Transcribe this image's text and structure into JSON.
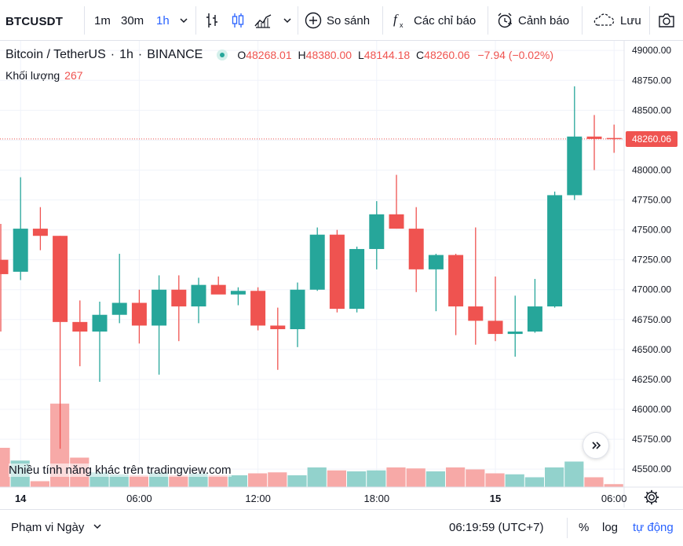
{
  "toolbar": {
    "symbol": "BTCUSDT",
    "intervals": [
      "1m",
      "30m",
      "1h"
    ],
    "active_interval": "1h",
    "compare_label": "So sánh",
    "indicators_label": "Các chỉ báo",
    "alert_label": "Cảnh báo",
    "save_label": "Lưu",
    "icons": [
      "chevron-down-icon",
      "bar-chart-icon",
      "candle-chart-icon",
      "area-chart-icon",
      "plus-circle-icon",
      "fx-icon",
      "alarm-icon",
      "cloud-icon",
      "camera-icon"
    ]
  },
  "legend": {
    "title": "Bitcoin / TetherUS",
    "interval": "1h",
    "exchange": "BINANCE",
    "ohlc": {
      "o": "48268.01",
      "h": "48380.00",
      "l": "48144.18",
      "c": "48260.06",
      "change": "−7.94 (−0.02%)"
    },
    "volume_label": "Khối lượng",
    "volume_value": "267"
  },
  "watermark": "Nhiều tính năng khác trên tradingview.com",
  "bottom": {
    "range_label": "Phạm vi Ngày",
    "time": "06:19:59 (UTC+7)",
    "percent": "%",
    "log": "log",
    "auto": "tự động"
  },
  "colors": {
    "up": "#26a69a",
    "down": "#ef5350",
    "up_volume": "#92d2cc",
    "down_volume": "#f7a9a7",
    "accent": "#2962ff"
  },
  "chart_data": {
    "type": "candlestick",
    "ylim": [
      45350,
      49080
    ],
    "price_ticks": [
      49000,
      48750,
      48500,
      48250,
      48000,
      47750,
      47500,
      47250,
      47000,
      46750,
      46500,
      46250,
      46000,
      45750,
      45500
    ],
    "last_price": "48260.06",
    "time_ticks": [
      {
        "label": "14",
        "bold": true,
        "index": 1
      },
      {
        "label": "06:00",
        "bold": false,
        "index": 7
      },
      {
        "label": "12:00",
        "bold": false,
        "index": 13
      },
      {
        "label": "18:00",
        "bold": false,
        "index": 19
      },
      {
        "label": "15",
        "bold": true,
        "index": 25
      },
      {
        "label": "06:00",
        "bold": false,
        "index": 31
      }
    ],
    "candles": [
      {
        "o": 47250,
        "h": 47550,
        "l": 46650,
        "c": 47130
      },
      {
        "o": 47150,
        "h": 47940,
        "l": 47080,
        "c": 47510
      },
      {
        "o": 47510,
        "h": 47690,
        "l": 47330,
        "c": 47450
      },
      {
        "o": 47450,
        "h": 47450,
        "l": 45670,
        "c": 46730
      },
      {
        "o": 46730,
        "h": 46910,
        "l": 46360,
        "c": 46650
      },
      {
        "o": 46650,
        "h": 46900,
        "l": 46230,
        "c": 46790
      },
      {
        "o": 46790,
        "h": 47300,
        "l": 46720,
        "c": 46890
      },
      {
        "o": 46890,
        "h": 47000,
        "l": 46550,
        "c": 46700
      },
      {
        "o": 46700,
        "h": 47120,
        "l": 46290,
        "c": 47000
      },
      {
        "o": 47000,
        "h": 47120,
        "l": 46570,
        "c": 46860
      },
      {
        "o": 46860,
        "h": 47100,
        "l": 46720,
        "c": 47040
      },
      {
        "o": 47040,
        "h": 47110,
        "l": 46970,
        "c": 46960
      },
      {
        "o": 46960,
        "h": 47020,
        "l": 46870,
        "c": 46990
      },
      {
        "o": 46990,
        "h": 47020,
        "l": 46660,
        "c": 46700
      },
      {
        "o": 46700,
        "h": 46850,
        "l": 46330,
        "c": 46670
      },
      {
        "o": 46670,
        "h": 47060,
        "l": 46520,
        "c": 47000
      },
      {
        "o": 47000,
        "h": 47520,
        "l": 46990,
        "c": 47460
      },
      {
        "o": 47460,
        "h": 47500,
        "l": 46810,
        "c": 46840
      },
      {
        "o": 46840,
        "h": 47360,
        "l": 46810,
        "c": 47340
      },
      {
        "o": 47340,
        "h": 47740,
        "l": 47170,
        "c": 47630
      },
      {
        "o": 47630,
        "h": 47960,
        "l": 47510,
        "c": 47510
      },
      {
        "o": 47510,
        "h": 47690,
        "l": 46980,
        "c": 47170
      },
      {
        "o": 47170,
        "h": 47300,
        "l": 46820,
        "c": 47290
      },
      {
        "o": 47290,
        "h": 47300,
        "l": 46620,
        "c": 46860
      },
      {
        "o": 46860,
        "h": 47520,
        "l": 46540,
        "c": 46740
      },
      {
        "o": 46740,
        "h": 47110,
        "l": 46570,
        "c": 46630
      },
      {
        "o": 46630,
        "h": 46950,
        "l": 46440,
        "c": 46650
      },
      {
        "o": 46650,
        "h": 47090,
        "l": 46640,
        "c": 46860
      },
      {
        "o": 46860,
        "h": 47820,
        "l": 46850,
        "c": 47790
      },
      {
        "o": 47790,
        "h": 48700,
        "l": 47750,
        "c": 48280
      },
      {
        "o": 48280,
        "h": 48460,
        "l": 48000,
        "c": 48260
      },
      {
        "o": 48268.01,
        "h": 48380,
        "l": 48144.18,
        "c": 48260.06
      }
    ],
    "volumes": [
      {
        "v": 0.4,
        "up": false
      },
      {
        "v": 0.27,
        "up": true
      },
      {
        "v": 0.06,
        "up": false
      },
      {
        "v": 0.85,
        "up": false
      },
      {
        "v": 0.3,
        "up": false
      },
      {
        "v": 0.15,
        "up": true
      },
      {
        "v": 0.13,
        "up": true
      },
      {
        "v": 0.12,
        "up": false
      },
      {
        "v": 0.15,
        "up": true
      },
      {
        "v": 0.12,
        "up": false
      },
      {
        "v": 0.14,
        "up": true
      },
      {
        "v": 0.12,
        "up": false
      },
      {
        "v": 0.12,
        "up": true
      },
      {
        "v": 0.14,
        "up": false
      },
      {
        "v": 0.15,
        "up": false
      },
      {
        "v": 0.12,
        "up": true
      },
      {
        "v": 0.2,
        "up": true
      },
      {
        "v": 0.17,
        "up": false
      },
      {
        "v": 0.16,
        "up": true
      },
      {
        "v": 0.17,
        "up": true
      },
      {
        "v": 0.2,
        "up": false
      },
      {
        "v": 0.19,
        "up": false
      },
      {
        "v": 0.16,
        "up": true
      },
      {
        "v": 0.2,
        "up": false
      },
      {
        "v": 0.18,
        "up": false
      },
      {
        "v": 0.14,
        "up": false
      },
      {
        "v": 0.13,
        "up": true
      },
      {
        "v": 0.1,
        "up": true
      },
      {
        "v": 0.2,
        "up": true
      },
      {
        "v": 0.26,
        "up": true
      },
      {
        "v": 0.1,
        "up": false
      },
      {
        "v": 0.03,
        "up": false
      }
    ]
  }
}
